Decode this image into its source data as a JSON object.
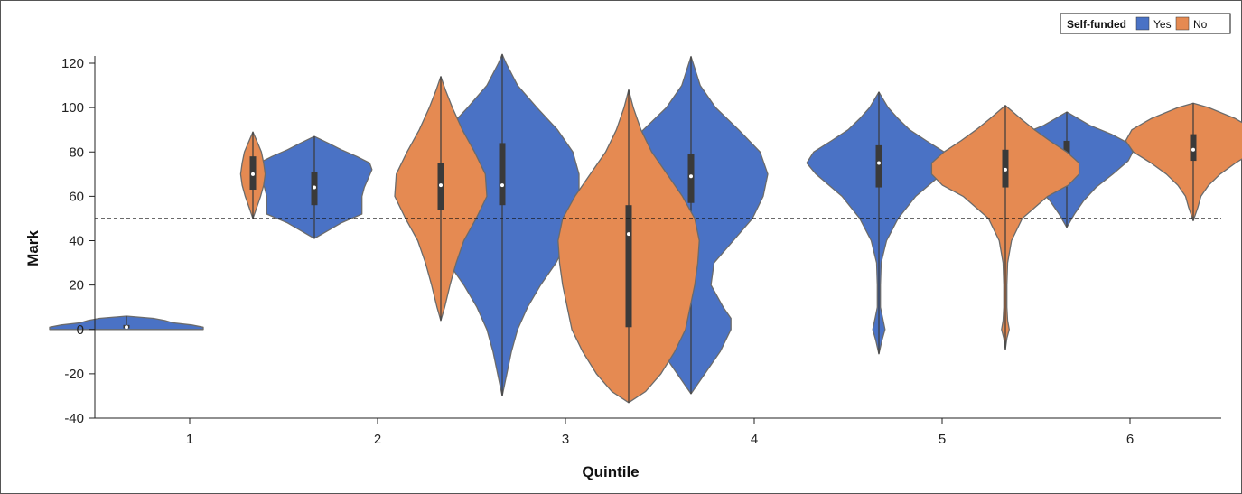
{
  "chart_data": {
    "type": "violin",
    "xlabel": "Quintile",
    "ylabel": "Mark",
    "ylim": [
      -40,
      120
    ],
    "yticks": [
      -40,
      -20,
      0,
      20,
      40,
      60,
      80,
      100,
      120
    ],
    "categories": [
      "1",
      "2",
      "3",
      "4",
      "5",
      "6"
    ],
    "reference_line": 50,
    "legend": {
      "title": "Self-funded",
      "placement": "top-right",
      "entries": [
        {
          "label": "Yes",
          "color": "#4a72c5"
        },
        {
          "label": "No",
          "color": "#e58a52"
        }
      ]
    },
    "series": [
      {
        "name": "Yes",
        "color": "#4a72c5",
        "violins": [
          {
            "category": "1",
            "min": 0,
            "max": 6,
            "q1": 0.5,
            "median": 1,
            "q3": 2,
            "profile": [
              [
                0,
                1.0
              ],
              [
                1,
                1.0
              ],
              [
                2,
                0.85
              ],
              [
                3,
                0.6
              ],
              [
                4,
                0.5
              ],
              [
                5,
                0.35
              ],
              [
                6,
                0.0
              ]
            ]
          },
          {
            "category": "2",
            "min": 41,
            "max": 87,
            "q1": 56,
            "median": 64,
            "q3": 71,
            "profile": [
              [
                41,
                0.0
              ],
              [
                44,
                0.15
              ],
              [
                48,
                0.35
              ],
              [
                52,
                0.62
              ],
              [
                56,
                0.62
              ],
              [
                60,
                0.62
              ],
              [
                64,
                0.65
              ],
              [
                68,
                0.7
              ],
              [
                72,
                0.75
              ],
              [
                75,
                0.72
              ],
              [
                78,
                0.55
              ],
              [
                81,
                0.35
              ],
              [
                84,
                0.18
              ],
              [
                87,
                0.0
              ]
            ]
          },
          {
            "category": "3",
            "min": -30,
            "max": 124,
            "q1": 56,
            "median": 65,
            "q3": 84,
            "profile": [
              [
                -30,
                0.0
              ],
              [
                -20,
                0.06
              ],
              [
                -10,
                0.12
              ],
              [
                0,
                0.2
              ],
              [
                10,
                0.33
              ],
              [
                20,
                0.5
              ],
              [
                30,
                0.7
              ],
              [
                40,
                0.85
              ],
              [
                50,
                0.94
              ],
              [
                60,
                1.0
              ],
              [
                70,
                1.0
              ],
              [
                80,
                0.92
              ],
              [
                90,
                0.72
              ],
              [
                100,
                0.45
              ],
              [
                110,
                0.2
              ],
              [
                120,
                0.05
              ],
              [
                124,
                0.0
              ]
            ]
          },
          {
            "category": "4",
            "min": -29,
            "max": 123,
            "q1": 57,
            "median": 69,
            "q3": 79,
            "profile": [
              [
                -29,
                0.0
              ],
              [
                -20,
                0.18
              ],
              [
                -10,
                0.38
              ],
              [
                0,
                0.52
              ],
              [
                5,
                0.52
              ],
              [
                10,
                0.42
              ],
              [
                20,
                0.26
              ],
              [
                30,
                0.3
              ],
              [
                40,
                0.55
              ],
              [
                50,
                0.8
              ],
              [
                60,
                0.94
              ],
              [
                70,
                1.0
              ],
              [
                80,
                0.9
              ],
              [
                90,
                0.62
              ],
              [
                100,
                0.32
              ],
              [
                110,
                0.12
              ],
              [
                123,
                0.0
              ]
            ]
          },
          {
            "category": "5",
            "min": -11,
            "max": 107,
            "q1": 64,
            "median": 75,
            "q3": 83,
            "profile": [
              [
                -11,
                0.0
              ],
              [
                -5,
                0.04
              ],
              [
                0,
                0.08
              ],
              [
                5,
                0.05
              ],
              [
                10,
                0.02
              ],
              [
                20,
                0.02
              ],
              [
                30,
                0.03
              ],
              [
                40,
                0.1
              ],
              [
                50,
                0.25
              ],
              [
                60,
                0.48
              ],
              [
                70,
                0.82
              ],
              [
                75,
                0.94
              ],
              [
                80,
                0.85
              ],
              [
                85,
                0.62
              ],
              [
                90,
                0.4
              ],
              [
                95,
                0.25
              ],
              [
                100,
                0.12
              ],
              [
                107,
                0.0
              ]
            ]
          },
          {
            "category": "6",
            "min": 46,
            "max": 98,
            "q1": 67,
            "median": 76,
            "q3": 85,
            "profile": [
              [
                46,
                0.0
              ],
              [
                52,
                0.1
              ],
              [
                58,
                0.22
              ],
              [
                64,
                0.38
              ],
              [
                70,
                0.6
              ],
              [
                76,
                0.8
              ],
              [
                80,
                0.86
              ],
              [
                84,
                0.8
              ],
              [
                88,
                0.58
              ],
              [
                92,
                0.3
              ],
              [
                95,
                0.15
              ],
              [
                98,
                0.0
              ]
            ]
          }
        ]
      },
      {
        "name": "No",
        "color": "#e58a52",
        "violins": [
          {
            "category": "1",
            "min": 50,
            "max": 89,
            "q1": 63,
            "median": 70,
            "q3": 78,
            "profile": [
              [
                50,
                0.0
              ],
              [
                55,
                0.05
              ],
              [
                60,
                0.1
              ],
              [
                65,
                0.14
              ],
              [
                70,
                0.16
              ],
              [
                75,
                0.14
              ],
              [
                80,
                0.11
              ],
              [
                85,
                0.05
              ],
              [
                89,
                0.0
              ]
            ]
          },
          {
            "category": "2",
            "min": 4,
            "max": 114,
            "q1": 54,
            "median": 65,
            "q3": 75,
            "profile": [
              [
                4,
                0.0
              ],
              [
                10,
                0.05
              ],
              [
                20,
                0.12
              ],
              [
                30,
                0.2
              ],
              [
                40,
                0.3
              ],
              [
                50,
                0.46
              ],
              [
                60,
                0.6
              ],
              [
                70,
                0.58
              ],
              [
                80,
                0.44
              ],
              [
                90,
                0.28
              ],
              [
                100,
                0.15
              ],
              [
                108,
                0.06
              ],
              [
                114,
                0.0
              ]
            ]
          },
          {
            "category": "3",
            "min": -33,
            "max": 108,
            "q1": 1,
            "median": 43,
            "q3": 56,
            "profile": [
              [
                -33,
                0.0
              ],
              [
                -28,
                0.22
              ],
              [
                -20,
                0.42
              ],
              [
                -10,
                0.6
              ],
              [
                0,
                0.74
              ],
              [
                10,
                0.8
              ],
              [
                20,
                0.86
              ],
              [
                30,
                0.9
              ],
              [
                40,
                0.92
              ],
              [
                50,
                0.86
              ],
              [
                60,
                0.7
              ],
              [
                70,
                0.5
              ],
              [
                80,
                0.3
              ],
              [
                90,
                0.16
              ],
              [
                100,
                0.06
              ],
              [
                108,
                0.0
              ]
            ]
          },
          {
            "category": "5",
            "min": -9,
            "max": 101,
            "q1": 64,
            "median": 72,
            "q3": 81,
            "profile": [
              [
                -9,
                0.0
              ],
              [
                -4,
                0.02
              ],
              [
                0,
                0.05
              ],
              [
                4,
                0.03
              ],
              [
                10,
                0.02
              ],
              [
                20,
                0.02
              ],
              [
                30,
                0.03
              ],
              [
                40,
                0.08
              ],
              [
                50,
                0.22
              ],
              [
                60,
                0.55
              ],
              [
                65,
                0.82
              ],
              [
                70,
                0.96
              ],
              [
                75,
                0.96
              ],
              [
                80,
                0.8
              ],
              [
                85,
                0.58
              ],
              [
                90,
                0.38
              ],
              [
                95,
                0.2
              ],
              [
                101,
                0.0
              ]
            ]
          },
          {
            "category": "6",
            "min": 49,
            "max": 102,
            "q1": 76,
            "median": 81,
            "q3": 88,
            "profile": [
              [
                49,
                0.0
              ],
              [
                55,
                0.06
              ],
              [
                60,
                0.1
              ],
              [
                65,
                0.2
              ],
              [
                70,
                0.35
              ],
              [
                75,
                0.55
              ],
              [
                80,
                0.78
              ],
              [
                85,
                0.88
              ],
              [
                90,
                0.8
              ],
              [
                95,
                0.55
              ],
              [
                100,
                0.2
              ],
              [
                102,
                0.0
              ]
            ]
          }
        ]
      }
    ]
  }
}
